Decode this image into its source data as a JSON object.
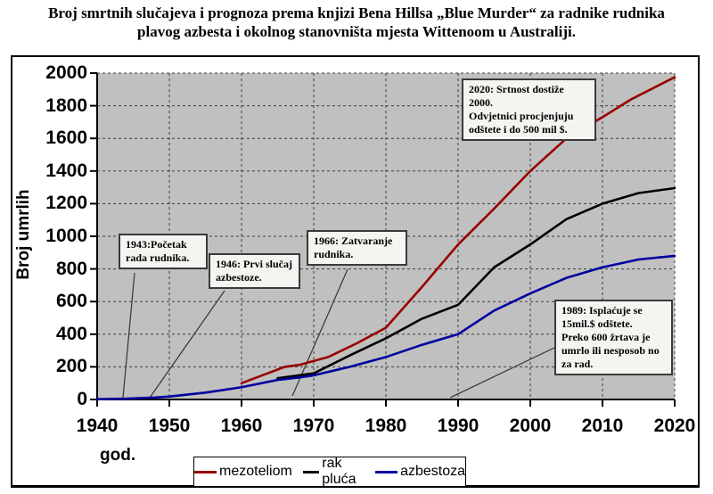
{
  "title": {
    "line1": "Broj smrtnih slučajeva i prognoza prema knjizi Bena Hillsa „Blue Murder“ za radnike rudnika",
    "line2": "plavog azbesta i okolnog stanovništa mjesta Wittenoom u Australiji."
  },
  "legend": {
    "items": [
      {
        "label": "mezoteliom",
        "color": "#990000"
      },
      {
        "label": "rak pluća",
        "color": "#000000"
      },
      {
        "label": "azbestoza",
        "color": "#0000A0"
      }
    ]
  },
  "annotations": {
    "a1943": {
      "text": "1943:Početak\nrada rudnika."
    },
    "a1946": {
      "text": "1946: Prvi slučaj\nazbestoze."
    },
    "a1966": {
      "text": "1966: Zatvaranje\nrudnika."
    },
    "a2020": {
      "text": "2020: Srtnost dostiže 2000.\nOdvjetnici procjenjuju\nodštete i do 500 mil $."
    },
    "a1989": {
      "text": "1989: Isplaćuje se\n15mil.$ odštete.\nPreko 600 žrtava je\numrlo ili nesposob no\nza rad."
    }
  },
  "chart_data": {
    "type": "line",
    "title": "Broj smrtnih slučajeva i prognoza prema knjizi Bena Hillsa „Blue Murder“ za radnike rudnika plavog azbesta i okolnog stanovništa mjesta Wittenoom u Australiji.",
    "xlabel": "god.",
    "ylabel": "Broj umrlih",
    "xlim": [
      1940,
      2020
    ],
    "ylim": [
      0,
      2000
    ],
    "x_ticks": [
      1940,
      1950,
      1960,
      1970,
      1980,
      1990,
      2000,
      2010,
      2020
    ],
    "y_ticks": [
      0,
      200,
      400,
      600,
      800,
      1000,
      1200,
      1400,
      1600,
      1800,
      2000
    ],
    "grid": true,
    "plot_background": "#C0C0C0",
    "legend_position": "bottom",
    "series": [
      {
        "name": "mezoteliom",
        "color": "#990000",
        "points": [
          [
            1960,
            100
          ],
          [
            1963,
            150
          ],
          [
            1966,
            200
          ],
          [
            1968,
            212
          ],
          [
            1972,
            260
          ],
          [
            1976,
            345
          ],
          [
            1980,
            440
          ],
          [
            1985,
            690
          ],
          [
            1990,
            950
          ],
          [
            1995,
            1170
          ],
          [
            2000,
            1400
          ],
          [
            2005,
            1600
          ],
          [
            2010,
            1730
          ],
          [
            2014,
            1840
          ],
          [
            2020,
            1975
          ]
        ]
      },
      {
        "name": "rak pluća",
        "color": "#000000",
        "points": [
          [
            1965,
            130
          ],
          [
            1970,
            160
          ],
          [
            1975,
            270
          ],
          [
            1980,
            375
          ],
          [
            1985,
            495
          ],
          [
            1990,
            580
          ],
          [
            1995,
            810
          ],
          [
            2000,
            950
          ],
          [
            2005,
            1105
          ],
          [
            2010,
            1200
          ],
          [
            2015,
            1265
          ],
          [
            2020,
            1295
          ]
        ]
      },
      {
        "name": "azbestoza",
        "color": "#0000A0",
        "points": [
          [
            1940,
            2
          ],
          [
            1944,
            5
          ],
          [
            1948,
            12
          ],
          [
            1950,
            18
          ],
          [
            1955,
            42
          ],
          [
            1960,
            75
          ],
          [
            1965,
            120
          ],
          [
            1968,
            135
          ],
          [
            1970,
            148
          ],
          [
            1975,
            200
          ],
          [
            1980,
            260
          ],
          [
            1985,
            335
          ],
          [
            1990,
            400
          ],
          [
            1995,
            545
          ],
          [
            2000,
            650
          ],
          [
            2005,
            745
          ],
          [
            2010,
            810
          ],
          [
            2015,
            858
          ],
          [
            2020,
            880
          ]
        ]
      }
    ],
    "event_annotations": [
      {
        "year": 1943,
        "text": "1943:Početak rada rudnika."
      },
      {
        "year": 1946,
        "text": "1946: Prvi slučaj azbestoze."
      },
      {
        "year": 1966,
        "text": "1966: Zatvaranje rudnika."
      },
      {
        "year": 1989,
        "text": "1989: Isplaćuje se 15mil.$ odštete. Preko 600 žrtava je umrlo ili nesposob no za rad."
      },
      {
        "year": 2020,
        "text": "2020: Srtnost dostiže 2000. Odvjetnici procjenjuju odštete i do 500 mil $."
      }
    ]
  }
}
